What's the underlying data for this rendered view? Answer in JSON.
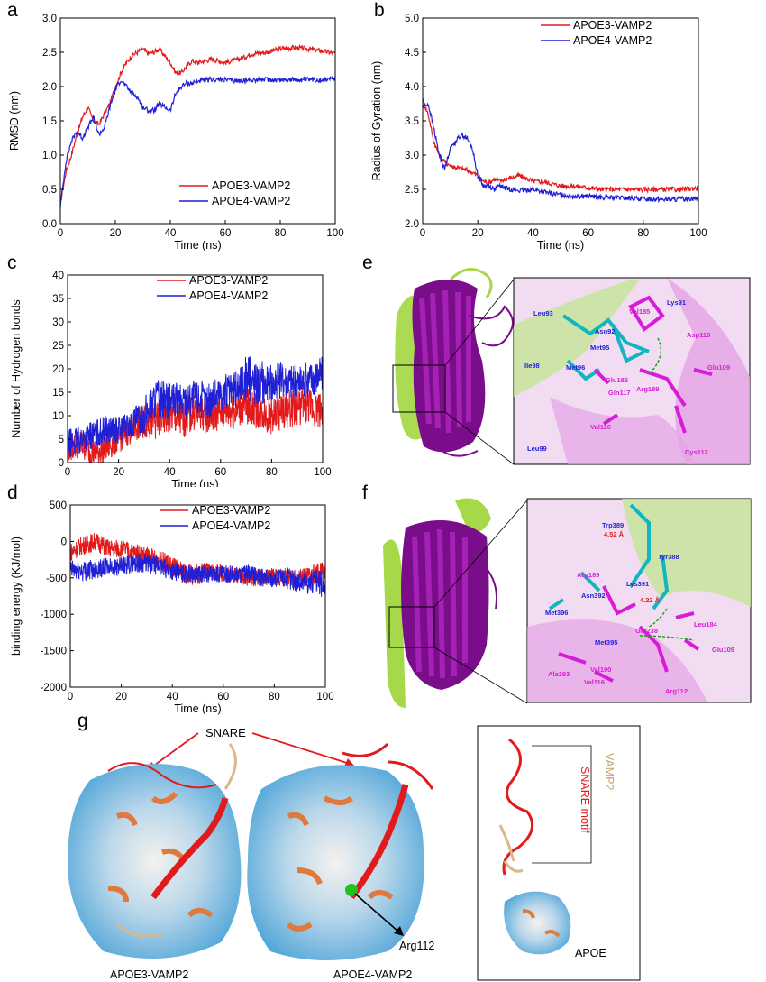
{
  "panels": {
    "a": "a",
    "b": "b",
    "c": "c",
    "d": "d",
    "e": "e",
    "f": "f",
    "g": "g"
  },
  "colors": {
    "apoe3": "#e31a1c",
    "apoe4": "#1f1fd6",
    "magenta": "#d81bd8",
    "cyan": "#12b5c0",
    "purple": "#7a0d8a",
    "lime": "#9bd13f"
  },
  "chart_data": [
    {
      "id": "a",
      "type": "line",
      "xlabel": "Time (ns)",
      "ylabel": "RMSD (nm)",
      "xlim": [
        0,
        100
      ],
      "ylim": [
        0,
        3.0
      ],
      "xticks": [
        "0",
        "20",
        "40",
        "60",
        "80",
        "100"
      ],
      "yticks": [
        "0.0",
        "0.5",
        "1.0",
        "1.5",
        "2.0",
        "2.5",
        "3.0"
      ],
      "legend_position": "bottom-right",
      "series": [
        {
          "name": "APOE3-VAMP2",
          "color": "#e31a1c",
          "x": [
            0,
            2,
            4,
            6,
            8,
            10,
            12,
            14,
            16,
            18,
            20,
            22,
            24,
            26,
            28,
            30,
            32,
            34,
            36,
            38,
            40,
            42,
            44,
            46,
            48,
            50,
            55,
            60,
            65,
            70,
            75,
            80,
            85,
            90,
            95,
            100
          ],
          "y": [
            0.3,
            0.75,
            1.0,
            1.3,
            1.55,
            1.7,
            1.5,
            1.45,
            1.6,
            1.75,
            2.0,
            2.2,
            2.35,
            2.45,
            2.5,
            2.55,
            2.48,
            2.5,
            2.55,
            2.45,
            2.35,
            2.2,
            2.2,
            2.3,
            2.38,
            2.35,
            2.4,
            2.35,
            2.4,
            2.48,
            2.5,
            2.55,
            2.57,
            2.55,
            2.52,
            2.48
          ]
        },
        {
          "name": "APOE4-VAMP2",
          "color": "#1f1fd6",
          "x": [
            0,
            2,
            4,
            6,
            8,
            10,
            12,
            14,
            16,
            18,
            20,
            22,
            24,
            26,
            28,
            30,
            32,
            34,
            36,
            38,
            40,
            42,
            44,
            46,
            48,
            50,
            55,
            60,
            65,
            70,
            75,
            80,
            85,
            90,
            95,
            100
          ],
          "y": [
            0.25,
            0.9,
            1.2,
            1.35,
            1.25,
            1.4,
            1.55,
            1.3,
            1.4,
            1.7,
            1.95,
            2.1,
            2.0,
            1.9,
            1.85,
            1.7,
            1.65,
            1.65,
            1.75,
            1.7,
            1.65,
            1.9,
            2.0,
            2.05,
            2.05,
            2.08,
            2.1,
            2.1,
            2.08,
            2.1,
            2.1,
            2.1,
            2.1,
            2.1,
            2.1,
            2.12
          ]
        }
      ]
    },
    {
      "id": "b",
      "type": "line",
      "xlabel": "Time (ns)",
      "ylabel": "Radius of Gyration (nm)",
      "xlim": [
        0,
        100
      ],
      "ylim": [
        2.0,
        5.0
      ],
      "xticks": [
        "0",
        "20",
        "40",
        "60",
        "80",
        "100"
      ],
      "yticks": [
        "2.0",
        "2.5",
        "3.0",
        "3.5",
        "4.0",
        "4.5",
        "5.0"
      ],
      "legend_position": "top-right",
      "series": [
        {
          "name": "APOE3-VAMP2",
          "color": "#e31a1c",
          "x": [
            0,
            2,
            4,
            6,
            8,
            10,
            12,
            14,
            16,
            18,
            20,
            22,
            24,
            26,
            28,
            30,
            35,
            40,
            45,
            50,
            55,
            60,
            65,
            70,
            75,
            80,
            85,
            90,
            95,
            100
          ],
          "y": [
            3.8,
            3.6,
            3.2,
            3.0,
            2.9,
            2.85,
            2.82,
            2.8,
            2.78,
            2.75,
            2.7,
            2.62,
            2.6,
            2.65,
            2.62,
            2.65,
            2.7,
            2.62,
            2.6,
            2.55,
            2.55,
            2.52,
            2.5,
            2.5,
            2.5,
            2.5,
            2.5,
            2.5,
            2.5,
            2.52
          ]
        },
        {
          "name": "APOE4-VAMP2",
          "color": "#1f1fd6",
          "x": [
            0,
            2,
            4,
            6,
            8,
            10,
            12,
            14,
            16,
            18,
            20,
            22,
            24,
            26,
            28,
            30,
            35,
            40,
            45,
            50,
            55,
            60,
            65,
            70,
            75,
            80,
            85,
            90,
            95,
            100
          ],
          "y": [
            3.7,
            3.75,
            3.4,
            3.0,
            2.8,
            3.1,
            3.2,
            3.3,
            3.25,
            3.1,
            2.7,
            2.55,
            2.55,
            2.5,
            2.55,
            2.52,
            2.48,
            2.5,
            2.45,
            2.42,
            2.4,
            2.4,
            2.38,
            2.38,
            2.37,
            2.36,
            2.36,
            2.35,
            2.36,
            2.38
          ]
        }
      ]
    },
    {
      "id": "c",
      "type": "line",
      "xlabel": "Time (ns)",
      "ylabel": "Number of Hydrogen bonds",
      "xlim": [
        0,
        100
      ],
      "ylim": [
        0,
        40
      ],
      "xticks": [
        "0",
        "20",
        "40",
        "60",
        "80",
        "100"
      ],
      "yticks": [
        "0",
        "5",
        "10",
        "15",
        "20",
        "25",
        "30",
        "35",
        "40"
      ],
      "legend_position": "top-right",
      "series": [
        {
          "name": "APOE3-VAMP2",
          "color": "#e31a1c",
          "x": [
            0,
            5,
            10,
            15,
            20,
            25,
            30,
            35,
            40,
            45,
            50,
            55,
            60,
            65,
            70,
            75,
            80,
            85,
            90,
            95,
            100
          ],
          "y": [
            3,
            4,
            2,
            3,
            5,
            7,
            9,
            9,
            10,
            9,
            11,
            10,
            11,
            11,
            12,
            11,
            10,
            11,
            12,
            12,
            11
          ],
          "amp": [
            3,
            3,
            3,
            3,
            3,
            3,
            4,
            4,
            4,
            4,
            4,
            4,
            4,
            4,
            4,
            4,
            4,
            4,
            4,
            4,
            4
          ]
        },
        {
          "name": "APOE4-VAMP2",
          "color": "#1f1fd6",
          "x": [
            0,
            5,
            10,
            15,
            20,
            25,
            30,
            35,
            40,
            45,
            50,
            55,
            60,
            65,
            70,
            75,
            80,
            85,
            90,
            95,
            100
          ],
          "y": [
            4,
            5,
            6,
            7,
            7,
            8,
            10,
            14,
            13,
            13,
            14,
            13,
            15,
            15,
            18,
            17,
            17,
            18,
            17,
            18,
            19
          ],
          "amp": [
            3,
            3,
            3,
            3,
            3,
            3,
            4,
            4,
            4,
            4,
            4,
            4,
            4,
            4,
            5,
            5,
            4,
            4,
            4,
            4,
            4
          ]
        }
      ]
    },
    {
      "id": "d",
      "type": "line",
      "xlabel": "Time (ns)",
      "ylabel": "binding energy (KJ/mol)",
      "xlim": [
        0,
        100
      ],
      "ylim": [
        -2000,
        500
      ],
      "xticks": [
        "0",
        "20",
        "40",
        "60",
        "80",
        "100"
      ],
      "yticks": [
        "-2000",
        "-1500",
        "-1000",
        "-500",
        "0",
        "500"
      ],
      "legend_position": "top-right",
      "series": [
        {
          "name": "APOE3-VAMP2",
          "color": "#e31a1c",
          "x": [
            0,
            5,
            10,
            15,
            20,
            25,
            30,
            35,
            40,
            45,
            50,
            55,
            60,
            65,
            70,
            75,
            80,
            85,
            90,
            95,
            100
          ],
          "y": [
            -150,
            -50,
            0,
            -100,
            -100,
            -150,
            -200,
            -250,
            -350,
            -450,
            -450,
            -400,
            -450,
            -450,
            -500,
            -500,
            -480,
            -500,
            -500,
            -480,
            -400
          ],
          "amp": [
            130,
            130,
            130,
            130,
            130,
            130,
            130,
            130,
            150,
            150,
            150,
            120,
            120,
            120,
            120,
            120,
            120,
            130,
            130,
            150,
            150
          ]
        },
        {
          "name": "APOE4-VAMP2",
          "color": "#1f1fd6",
          "x": [
            0,
            5,
            10,
            15,
            20,
            25,
            30,
            35,
            40,
            45,
            50,
            55,
            60,
            65,
            70,
            75,
            80,
            85,
            90,
            95,
            100
          ],
          "y": [
            -400,
            -400,
            -380,
            -350,
            -350,
            -300,
            -300,
            -350,
            -400,
            -450,
            -450,
            -450,
            -450,
            -450,
            -450,
            -500,
            -500,
            -500,
            -550,
            -550,
            -600
          ],
          "amp": [
            150,
            150,
            130,
            130,
            130,
            130,
            130,
            130,
            130,
            120,
            120,
            120,
            120,
            120,
            120,
            130,
            130,
            150,
            160,
            180,
            200
          ]
        }
      ]
    }
  ],
  "panel_e": {
    "residues_blue": [
      "Leu93",
      "Asn92",
      "Met95",
      "Ile98",
      "Met96",
      "Lys91",
      "Leu99"
    ],
    "residues_magenta": [
      "Val185",
      "Asp110",
      "Glu186",
      "Arg189",
      "Glu109",
      "Gln117",
      "Val116",
      "Cys112"
    ]
  },
  "panel_f": {
    "residues_blue": [
      "Trp389",
      "Tyr388",
      "Lys391",
      "Asn392",
      "Met396",
      "Met395"
    ],
    "residues_magenta": [
      "Arg189",
      "Glu238",
      "Leu184",
      "Glu109",
      "Val190",
      "Ala193",
      "Val116",
      "Arg112"
    ],
    "distances": [
      "4.52 Å",
      "4.22 Å"
    ]
  },
  "panel_g": {
    "snare_label": "SNARE",
    "arg_label": "Arg112",
    "left_caption": "APOE3-VAMP2",
    "right_caption": "APOE4-VAMP2",
    "motif_label": "SNARE motif",
    "vamp_label": "VAMP2",
    "apoe_label": "APOE"
  }
}
